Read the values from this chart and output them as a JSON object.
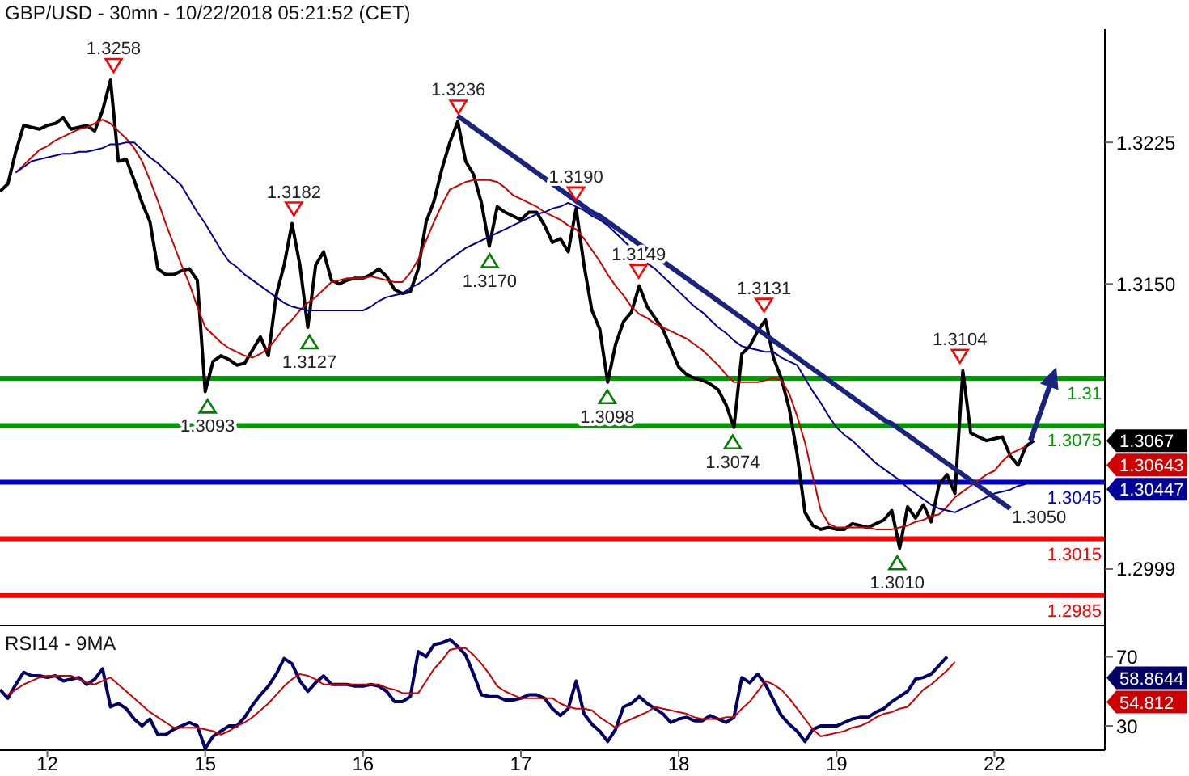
{
  "chart_data": [
    {
      "type": "line",
      "title": "GBP/USD - 30mn - 10/22/2018 05:21:52 (CET)",
      "categories": [
        null,
        null,
        null,
        null,
        null,
        null,
        "12",
        null,
        null,
        null,
        null,
        null,
        null,
        null,
        null,
        null,
        null,
        null,
        null,
        null,
        null,
        null,
        null,
        null,
        null,
        null,
        "15",
        null,
        null,
        null,
        null,
        null,
        null,
        null,
        null,
        null,
        null,
        null,
        null,
        null,
        null,
        null,
        null,
        null,
        null,
        null,
        "16",
        null,
        null,
        null,
        null,
        null,
        null,
        null,
        null,
        null,
        null,
        null,
        null,
        null,
        null,
        null,
        null,
        null,
        null,
        null,
        "17",
        null,
        null,
        null,
        null,
        null,
        null,
        null,
        null,
        null,
        null,
        null,
        null,
        null,
        null,
        null,
        null,
        null,
        null,
        null,
        "18",
        null,
        null,
        null,
        null,
        null,
        null,
        null,
        null,
        null,
        null,
        null,
        null,
        null,
        null,
        null,
        null,
        null,
        null,
        null,
        "19",
        null,
        null,
        null,
        null,
        null,
        null,
        null,
        null,
        null,
        null,
        null,
        null,
        null,
        null,
        null,
        null,
        null,
        null,
        null,
        "22",
        null,
        null,
        null,
        null,
        null,
        null,
        null,
        null,
        null,
        null,
        null,
        null,
        null,
        null
      ],
      "ylim": [
        1.2969,
        1.3285
      ],
      "yticks": [
        1.2999,
        {
          "value": 1.315,
          "label": "1.3150"
        },
        1.3225
      ],
      "tick_labels": "y",
      "series": [
        {
          "color": "#000000",
          "values": [
            1.3199,
            1.3203,
            1.322,
            1.3234,
            1.3233,
            1.3232,
            1.3234,
            1.3235,
            1.3238,
            1.3232,
            1.3233,
            1.3234,
            1.3231,
            1.3242,
            1.3258,
            1.3215,
            1.3216,
            1.3205,
            1.3193,
            1.3183,
            1.3158,
            1.3155,
            1.3155,
            1.3157,
            1.3158,
            1.3152,
            1.3093,
            1.3109,
            1.3112,
            1.311,
            1.3107,
            1.3108,
            1.3115,
            1.3122,
            1.3112,
            1.3144,
            1.316,
            1.3182,
            1.316,
            1.3127,
            1.316,
            1.3167,
            1.3152,
            1.315,
            1.3152,
            1.3153,
            1.3153,
            1.3155,
            1.3158,
            1.3154,
            1.3147,
            1.3145,
            1.3146,
            1.3158,
            1.3183,
            1.3194,
            1.3211,
            1.3225,
            1.3236,
            1.3215,
            1.3208,
            1.3193,
            1.317,
            1.3191,
            1.3188,
            1.3186,
            1.3184,
            1.3188,
            1.3188,
            1.3181,
            1.3172,
            1.3174,
            1.3167,
            1.319,
            1.316,
            1.3136,
            1.3126,
            1.3098,
            1.3118,
            1.313,
            1.3135,
            1.3149,
            1.3138,
            1.3132,
            1.3126,
            1.3116,
            1.3106,
            1.3102,
            1.31,
            1.3099,
            1.3097,
            1.3094,
            1.3086,
            1.3074,
            1.3113,
            1.3117,
            1.3125,
            1.3131,
            1.3111,
            1.31,
            1.3084,
            1.306,
            1.3029,
            1.3022,
            1.302,
            1.3021,
            1.302,
            1.302,
            1.3023,
            1.3022,
            1.3021,
            1.3023,
            1.3025,
            1.303,
            1.301,
            1.3032,
            1.3026,
            1.3033,
            1.3024,
            1.3044,
            1.3049,
            1.3039,
            1.3104,
            1.3071,
            1.3069,
            1.3067,
            1.3068,
            1.3069,
            1.3059,
            1.3054,
            1.3064,
            1.3067,
            null,
            null,
            null,
            null,
            null,
            null,
            null,
            null,
            null
          ]
        },
        {
          "color": "#d00000",
          "values": [
            null,
            null,
            1.3209,
            1.3213,
            1.3217,
            1.3221,
            1.3223,
            1.3226,
            1.3228,
            1.323,
            1.3232,
            1.3233,
            1.3235,
            1.3237,
            1.3235,
            1.3231,
            1.3227,
            1.3222,
            1.3215,
            1.3205,
            1.3194,
            1.3182,
            1.3171,
            1.316,
            1.315,
            1.3138,
            1.3127,
            1.3123,
            1.3119,
            1.3116,
            1.3114,
            1.3112,
            1.3111,
            1.3113,
            1.3116,
            1.3121,
            1.3127,
            1.3131,
            1.3136,
            1.314,
            1.3143,
            1.3147,
            1.3151,
            1.3152,
            1.3153,
            1.3153,
            1.3153,
            1.3154,
            1.3153,
            1.3152,
            1.3151,
            1.3151,
            1.3156,
            1.3163,
            1.3173,
            1.3183,
            1.3192,
            1.32,
            1.3202,
            1.3204,
            1.3205,
            1.3205,
            1.3205,
            1.3204,
            1.3201,
            1.3197,
            1.3195,
            1.3193,
            1.3191,
            1.3188,
            1.3186,
            1.3184,
            1.3181,
            1.3179,
            1.3174,
            1.3168,
            1.3162,
            1.3155,
            1.3149,
            1.3144,
            1.3138,
            1.3134,
            1.3132,
            1.3129,
            1.3127,
            1.3125,
            1.3123,
            1.3121,
            1.3118,
            1.3115,
            1.3111,
            1.3107,
            1.3102,
            1.3098,
            1.3098,
            1.3098,
            1.3098,
            1.3099,
            1.31,
            1.3099,
            1.3092,
            1.308,
            1.3066,
            1.3048,
            1.303,
            1.3023,
            1.3021,
            1.3021,
            1.3021,
            1.3021,
            1.3021,
            1.302,
            1.302,
            1.302,
            1.3021,
            1.3022,
            1.3024,
            1.3025,
            1.3027,
            1.3028,
            1.3032,
            1.3037,
            1.304,
            1.3043,
            1.3046,
            1.3049,
            1.3051,
            1.3056,
            1.306,
            1.3062,
            1.3064,
            null,
            null,
            null,
            null,
            null,
            null,
            null,
            null,
            null,
            null
          ]
        },
        {
          "color": "#000099",
          "values": [
            null,
            null,
            1.3209,
            1.3212,
            1.3215,
            1.3216,
            1.3217,
            1.3218,
            1.3219,
            1.3219,
            1.322,
            1.322,
            1.3221,
            1.3222,
            1.3224,
            1.3224,
            1.3225,
            1.3225,
            1.3221,
            1.3217,
            1.3214,
            1.321,
            1.3206,
            1.3202,
            1.3195,
            1.3188,
            1.3182,
            1.3175,
            1.3168,
            1.3162,
            1.3159,
            1.3155,
            1.3152,
            1.3149,
            1.3146,
            1.3143,
            1.314,
            1.3138,
            1.3137,
            1.3136,
            1.3136,
            1.3136,
            1.3136,
            1.3136,
            1.3136,
            1.3136,
            1.3136,
            1.3138,
            1.3141,
            1.3143,
            1.3144,
            1.3145,
            1.3148,
            1.315,
            1.3153,
            1.3156,
            1.316,
            1.3163,
            1.3166,
            1.3169,
            1.3171,
            1.3173,
            1.3175,
            1.3177,
            1.3179,
            1.3181,
            1.3183,
            1.3185,
            1.3187,
            1.3188,
            1.319,
            1.3191,
            1.3193,
            1.3191,
            1.3189,
            1.3186,
            1.3184,
            1.3181,
            1.3177,
            1.3173,
            1.3169,
            1.3165,
            1.3161,
            1.3158,
            1.3154,
            1.315,
            1.3146,
            1.3142,
            1.3138,
            1.3135,
            1.3131,
            1.3127,
            1.3124,
            1.312,
            1.3117,
            1.3116,
            1.3115,
            1.3114,
            1.3114,
            1.3111,
            1.3109,
            1.3107,
            1.31,
            1.3093,
            1.3087,
            1.308,
            1.3074,
            1.307,
            1.3067,
            1.3063,
            1.3059,
            1.3055,
            1.3052,
            1.3049,
            1.3046,
            1.3042,
            1.3039,
            1.3036,
            1.3033,
            1.3031,
            1.303,
            1.3029,
            1.3031,
            1.3033,
            1.3035,
            1.3037,
            1.3039,
            1.304,
            1.3041,
            1.3043,
            1.3044,
            null,
            null,
            null,
            null,
            null,
            null,
            null,
            null,
            null,
            null
          ]
        },
        {
          "color": "#1a237e",
          "values": [
            null,
            null,
            null,
            null,
            null,
            null,
            null,
            null,
            null,
            null,
            null,
            null,
            null,
            null,
            null,
            null,
            null,
            null,
            null,
            null,
            null,
            null,
            null,
            null,
            null,
            null,
            null,
            null,
            null,
            null,
            null,
            null,
            null,
            null,
            null,
            null,
            null,
            null,
            null,
            null,
            null,
            null,
            null,
            null,
            null,
            null,
            null,
            null,
            null,
            null,
            null,
            null,
            null,
            null,
            null,
            null,
            null,
            null,
            1.3239,
            1.3236,
            1.3233,
            1.323,
            1.3227,
            1.3224,
            1.3221,
            1.3218,
            1.3215,
            1.3212,
            1.3209,
            1.3206,
            1.3203,
            1.32,
            1.3197,
            1.3194,
            1.3191,
            1.3188,
            1.3186,
            1.3183,
            1.318,
            1.3177,
            1.3174,
            1.3171,
            1.3168,
            1.3165,
            1.3162,
            1.3159,
            1.3156,
            1.3153,
            1.315,
            1.3147,
            1.3144,
            1.3141,
            1.3138,
            1.3135,
            1.3132,
            1.3129,
            1.3126,
            1.3123,
            1.312,
            1.3117,
            1.3114,
            1.3111,
            1.3108,
            1.3105,
            1.3102,
            1.3099,
            1.3096,
            1.3093,
            1.309,
            1.3087,
            1.3084,
            1.3081,
            1.3078,
            1.3076,
            1.3073,
            1.307,
            1.3067,
            1.3064,
            1.3061,
            1.3058,
            1.3055,
            1.3052,
            1.3049,
            1.3046,
            1.3043,
            1.304,
            1.3037,
            1.3034,
            1.3031,
            null,
            null,
            null,
            null,
            null,
            null,
            null,
            null,
            null,
            null,
            null,
            null
          ]
        }
      ],
      "ref_lines": [
        {
          "axis": "y",
          "value": 1.31,
          "label": "1.31",
          "color": "#009a00"
        },
        {
          "axis": "y",
          "value": 1.3075,
          "label": "1.3075",
          "color": "#009a00"
        },
        {
          "axis": "y",
          "value": 1.3045,
          "label": "1.3045",
          "color": "#0000cc"
        },
        {
          "axis": "y",
          "value": 1.3015,
          "label": "1.3015",
          "color": "#ff0000"
        },
        {
          "axis": "y",
          "value": 1.2985,
          "label": "1.2985",
          "color": "#ff0000"
        }
      ],
      "annotations": [
        {
          "text": "1.3258",
          "y": 1.3258
        },
        {
          "text": "1.3093",
          "y": 1.3093
        },
        {
          "text": "1.3182",
          "y": 1.3182
        },
        {
          "text": "1.3127",
          "y": 1.3127
        },
        {
          "text": "1.3236",
          "y": 1.3236
        },
        {
          "text": "1.3170",
          "y": 1.317
        },
        {
          "text": "1.3190",
          "y": 1.319
        },
        {
          "text": "1.3098",
          "y": 1.3098
        },
        {
          "text": "1.3149",
          "y": 1.3149
        },
        {
          "text": "1.3074",
          "y": 1.3074
        },
        {
          "text": "1.3131",
          "y": 1.3131
        },
        {
          "text": "1.3010",
          "y": 1.301
        },
        {
          "text": "1.3104",
          "y": 1.3104
        },
        "1.3067",
        "1.30643",
        "1.30447",
        "1.3050"
      ]
    },
    {
      "type": "line",
      "title": "RSI14 - 9MA",
      "categories": [
        null,
        null,
        null,
        null,
        null,
        null,
        "12",
        null,
        null,
        null,
        null,
        null,
        null,
        null,
        null,
        null,
        null,
        null,
        null,
        null,
        null,
        null,
        null,
        null,
        null,
        null,
        "15",
        null,
        null,
        null,
        null,
        null,
        null,
        null,
        null,
        null,
        null,
        null,
        null,
        null,
        null,
        null,
        null,
        null,
        null,
        null,
        "16",
        null,
        null,
        null,
        null,
        null,
        null,
        null,
        null,
        null,
        null,
        null,
        null,
        null,
        null,
        null,
        null,
        null,
        null,
        null,
        "17",
        null,
        null,
        null,
        null,
        null,
        null,
        null,
        null,
        null,
        null,
        null,
        null,
        null,
        null,
        null,
        null,
        null,
        null,
        null,
        "18",
        null,
        null,
        null,
        null,
        null,
        null,
        null,
        null,
        null,
        null,
        null,
        null,
        null,
        null,
        null,
        null,
        null,
        null,
        null,
        "19",
        null,
        null,
        null,
        null,
        null,
        null,
        null,
        null,
        null,
        null,
        null,
        null,
        null,
        null,
        null,
        null,
        null,
        null,
        null,
        "22",
        null,
        null,
        null,
        null,
        null,
        null,
        null,
        null,
        null,
        null,
        null,
        null,
        null,
        null
      ],
      "ylim": [
        16,
        88
      ],
      "yticks": [
        30,
        70
      ],
      "series": [
        {
          "color": "#000066",
          "values": [
            51,
            46,
            54,
            61,
            59,
            59,
            58,
            59,
            56,
            57,
            58,
            54,
            57,
            63,
            41,
            43,
            40,
            34,
            30,
            34,
            25,
            25,
            28,
            30,
            32,
            30,
            17,
            24,
            27,
            30,
            30,
            35,
            42,
            48,
            53,
            60,
            69,
            66,
            56,
            50,
            55,
            59,
            54,
            54,
            54,
            53,
            53,
            54,
            53,
            50,
            44,
            44,
            47,
            73,
            70,
            77,
            78,
            80,
            76,
            71,
            60,
            48,
            47,
            47,
            45,
            45,
            46,
            48,
            48,
            46,
            40,
            36,
            40,
            56,
            37,
            31,
            27,
            21,
            28,
            41,
            43,
            47,
            43,
            40,
            37,
            32,
            34,
            35,
            33,
            33,
            36,
            34,
            32,
            35,
            58,
            55,
            60,
            54,
            45,
            36,
            31,
            27,
            21,
            28,
            30,
            30,
            30,
            32,
            34,
            35,
            35,
            38,
            40,
            44,
            47,
            50,
            57,
            58,
            60,
            65,
            70,
            null,
            null,
            null,
            null,
            null,
            null,
            null,
            null,
            null,
            null,
            null,
            null,
            null,
            null,
            null,
            null,
            null,
            null,
            null,
            null
          ]
        },
        {
          "color": "#cc0000",
          "values": [
            null,
            48,
            51,
            54,
            56,
            58,
            59,
            59,
            59,
            59,
            57,
            55,
            54,
            56,
            58,
            54,
            50,
            46,
            42,
            38,
            35,
            32,
            29,
            29,
            29,
            29,
            28,
            27,
            25,
            27,
            30,
            32,
            35,
            39,
            43,
            48,
            53,
            57,
            60,
            59,
            57,
            54,
            54,
            54,
            54,
            54,
            54,
            54,
            54,
            52,
            51,
            49,
            49,
            49,
            56,
            63,
            68,
            74,
            75,
            75,
            71,
            66,
            60,
            53,
            50,
            48,
            46,
            46,
            46,
            46,
            46,
            43,
            41,
            40,
            40,
            39,
            35,
            32,
            29,
            32,
            34,
            36,
            38,
            41,
            40,
            39,
            38,
            37,
            35,
            34,
            34,
            34,
            35,
            35,
            40,
            44,
            50,
            56,
            54,
            51,
            46,
            40,
            34,
            28,
            24,
            25,
            26,
            27,
            29,
            30,
            32,
            35,
            37,
            38,
            40,
            41,
            46,
            51,
            54,
            58,
            62,
            67,
            null,
            null,
            null,
            null,
            null,
            null,
            null,
            null,
            null,
            null,
            null,
            null,
            null,
            null,
            null,
            null,
            null,
            null,
            null
          ]
        }
      ],
      "annotations": [
        "58.8644",
        "54.812"
      ]
    }
  ]
}
